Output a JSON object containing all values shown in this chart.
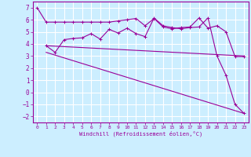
{
  "xlabel": "Windchill (Refroidissement éolien,°C)",
  "bg_color": "#cceeff",
  "grid_color": "#ffffff",
  "line_color": "#990099",
  "x_ticks": [
    0,
    1,
    2,
    3,
    4,
    5,
    6,
    7,
    8,
    9,
    10,
    11,
    12,
    13,
    14,
    15,
    16,
    17,
    18,
    19,
    20,
    21,
    22,
    23
  ],
  "y_ticks": [
    -2,
    -1,
    0,
    1,
    2,
    3,
    4,
    5,
    6,
    7
  ],
  "ylim": [
    -2.5,
    7.5
  ],
  "xlim": [
    -0.5,
    23.5
  ],
  "series": [
    {
      "x": [
        0,
        1,
        2,
        3,
        4,
        5,
        6,
        7,
        8,
        9,
        10,
        11,
        12,
        13,
        14,
        15,
        16,
        17,
        18,
        19,
        20,
        21,
        22,
        23
      ],
      "y": [
        7,
        5.8,
        5.8,
        5.8,
        5.8,
        5.8,
        5.8,
        5.8,
        5.8,
        5.9,
        6.0,
        6.1,
        5.5,
        6.1,
        5.4,
        5.25,
        5.35,
        5.4,
        6.15,
        5.3,
        5.5,
        5.0,
        2.95,
        2.95
      ],
      "marker": true
    },
    {
      "x": [
        1,
        2,
        3,
        4,
        5,
        6,
        7,
        8,
        9,
        10,
        11,
        12,
        13,
        14,
        15,
        16,
        17,
        18,
        19,
        20,
        21,
        22,
        23
      ],
      "y": [
        3.85,
        3.3,
        4.35,
        4.45,
        4.5,
        4.85,
        4.4,
        5.2,
        4.9,
        5.3,
        4.85,
        4.6,
        6.15,
        5.5,
        5.35,
        5.25,
        5.35,
        5.4,
        6.15,
        3.0,
        1.4,
        -1.0,
        -1.75
      ],
      "marker": true
    },
    {
      "x": [
        1,
        23
      ],
      "y": [
        3.85,
        3.0
      ],
      "marker": false
    },
    {
      "x": [
        1,
        23
      ],
      "y": [
        3.3,
        -1.75
      ],
      "marker": false
    }
  ]
}
